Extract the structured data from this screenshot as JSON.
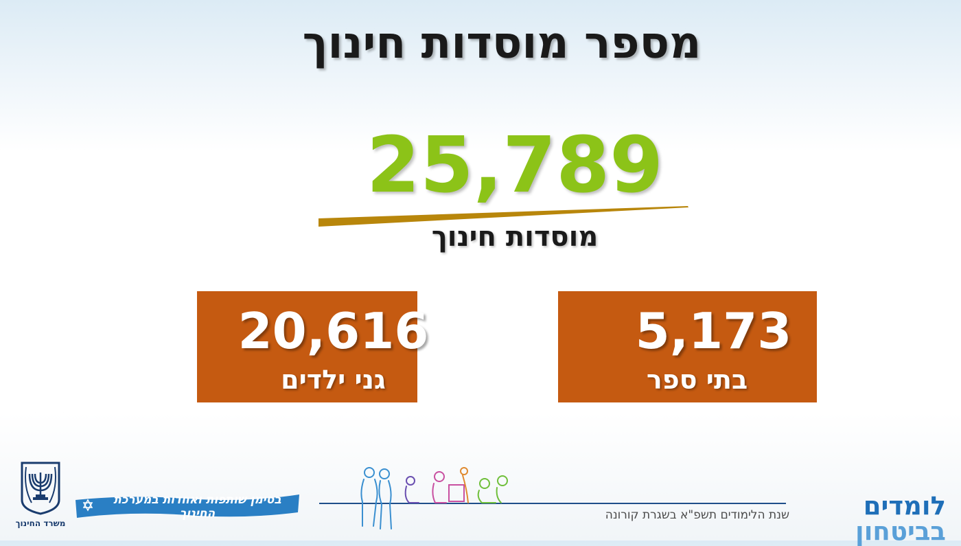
{
  "title": "מספר מוסדות חינוך",
  "total": {
    "number": "25,789",
    "label": "מוסדות חינוך"
  },
  "stats": [
    {
      "number": "20,616",
      "label": "גני ילדים"
    },
    {
      "number": "5,173",
      "label": "בתי ספר"
    }
  ],
  "footer": {
    "ministry_name": "משרד החינוך",
    "banner_text": "בסימן שותפות ואחדות במערכת החינוך",
    "campaign_part_a": "לומדים",
    "campaign_part_b": "בביטחון",
    "campaign_subtitle": "שנת הלימודים תשפ\"א בשגרת קורונה"
  },
  "colors": {
    "total_number": "#8cc318",
    "stat_box": "#c55a11",
    "swoosh": "#b8860b",
    "campaign_dark": "#1f6fb8",
    "campaign_light": "#5aa0d8"
  },
  "icons": [
    "menorah-emblem-icon",
    "star-of-david-icon",
    "family-illustration-icon"
  ]
}
